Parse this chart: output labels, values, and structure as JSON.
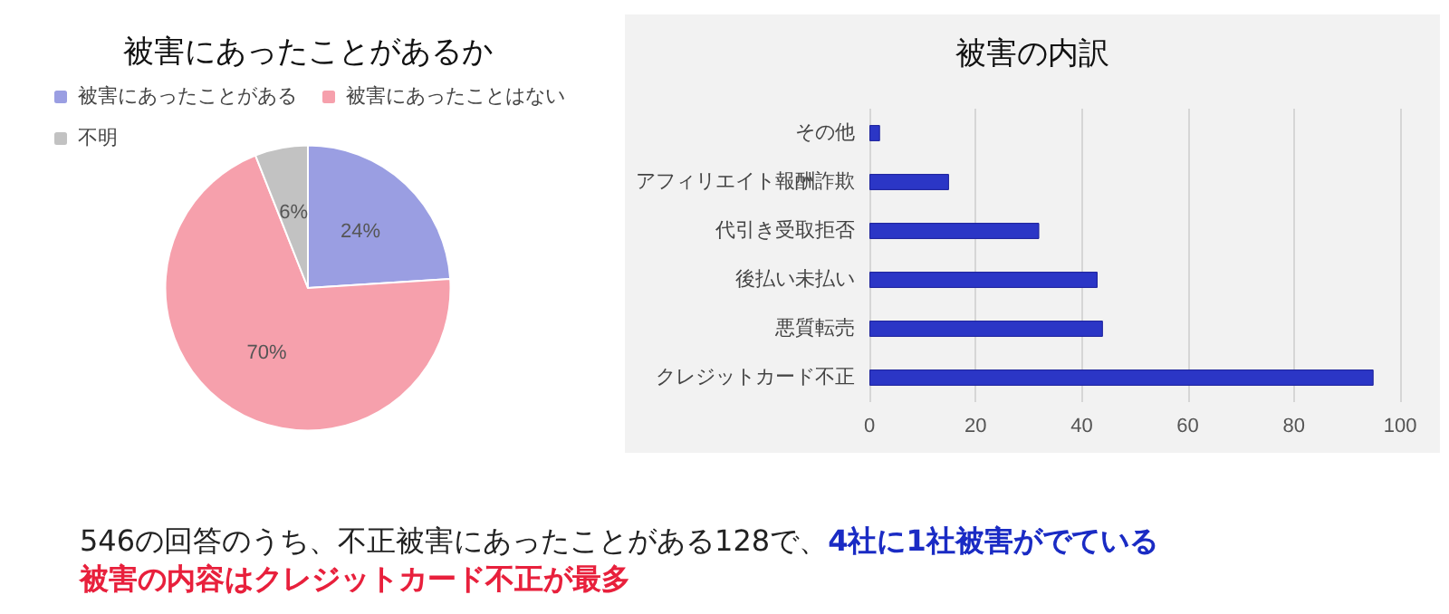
{
  "chart_data": [
    {
      "type": "pie",
      "title": "被害にあったことがあるか",
      "categories": [
        "被害にあったことがある",
        "被害にあったことはない",
        "不明"
      ],
      "values": [
        24,
        70,
        6
      ],
      "colors": [
        "#9a9ee2",
        "#f6a0ac",
        "#c2c2c2"
      ],
      "value_labels": [
        "24%",
        "70%",
        "6%"
      ],
      "legend": "top",
      "annotations": [
        "546の回答のうち、不正被害にあったことがある128で、",
        "4社に1社被害がでている",
        "被害の内容はクレジットカード不正が最多"
      ]
    },
    {
      "type": "bar",
      "orientation": "horizontal",
      "title": "被害の内訳",
      "categories": [
        "その他",
        "アフィリエイト報酬詐欺",
        "代引き受取拒否",
        "後払い未払い",
        "悪質転売",
        "クレジットカード不正"
      ],
      "values": [
        2,
        15,
        32,
        43,
        44,
        95
      ],
      "color": "#2b36c6",
      "xlim": [
        0,
        100
      ],
      "xticks": [
        0,
        20,
        40,
        60,
        80,
        100
      ],
      "grid": "x",
      "legend": false
    }
  ]
}
